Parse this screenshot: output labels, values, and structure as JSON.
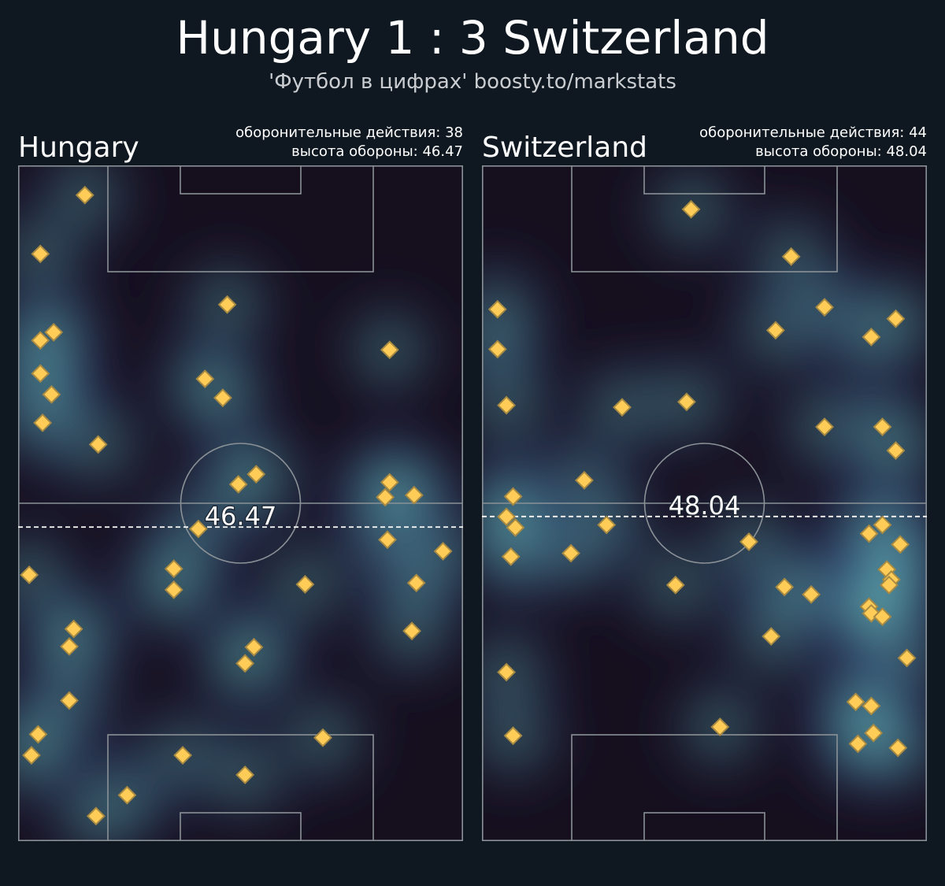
{
  "header": {
    "title": "Hungary 1 : 3 Switzerland",
    "subtitle": "'Футбол в цифрах' boosty.to/markstats"
  },
  "teams": [
    {
      "name": "Hungary",
      "actions_text": "оборонительные действия: 38",
      "height_text": "высота обороны: 46.47",
      "defense_line_label": "46.47"
    },
    {
      "name": "Switzerland",
      "actions_text": "оборонительные действия: 44",
      "height_text": "высота обороны: 48.04",
      "defense_line_label": "48.04"
    }
  ],
  "colors": {
    "background": "#0f1820",
    "pitch_base": "#160f1e",
    "marker_fill": "#ffcd57",
    "marker_stroke": "#a88a43",
    "lines": "#8a9196",
    "defense_line": "#ffffff"
  },
  "chart_data": [
    {
      "type": "scatter",
      "title": "Hungary",
      "xlim": [
        0,
        100
      ],
      "ylim": [
        0,
        100
      ],
      "defense_height": 46.47,
      "points": [
        [
          15,
          95.6
        ],
        [
          5,
          86.9
        ],
        [
          8,
          75.3
        ],
        [
          5,
          74.1
        ],
        [
          5,
          69.2
        ],
        [
          7.5,
          66.1
        ],
        [
          5.5,
          61.9
        ],
        [
          18,
          58.7
        ],
        [
          47,
          79.4
        ],
        [
          42,
          68.4
        ],
        [
          46,
          65.6
        ],
        [
          49.5,
          52.8
        ],
        [
          53.5,
          54.3
        ],
        [
          83.5,
          72.7
        ],
        [
          83.5,
          53.1
        ],
        [
          82.5,
          50.9
        ],
        [
          89,
          51.2
        ],
        [
          83,
          44.6
        ],
        [
          95.5,
          42.9
        ],
        [
          40.5,
          46.2
        ],
        [
          35,
          40.3
        ],
        [
          35,
          37.2
        ],
        [
          64.5,
          38.0
        ],
        [
          89.5,
          38.2
        ],
        [
          2.5,
          39.4
        ],
        [
          12.5,
          31.4
        ],
        [
          11.5,
          28.8
        ],
        [
          88.5,
          31.1
        ],
        [
          53,
          28.7
        ],
        [
          51,
          26.3
        ],
        [
          11.5,
          20.8
        ],
        [
          4.5,
          15.8
        ],
        [
          3,
          12.7
        ],
        [
          37,
          12.7
        ],
        [
          68.5,
          15.3
        ],
        [
          51,
          9.8
        ],
        [
          24.5,
          6.8
        ],
        [
          17.5,
          3.7
        ]
      ]
    },
    {
      "type": "scatter",
      "title": "Switzerland",
      "xlim": [
        0,
        100
      ],
      "ylim": [
        0,
        100
      ],
      "defense_height": 48.04,
      "points": [
        [
          47,
          93.5
        ],
        [
          69.5,
          86.5
        ],
        [
          3.5,
          78.7
        ],
        [
          3.5,
          72.8
        ],
        [
          66,
          75.6
        ],
        [
          77,
          79.0
        ],
        [
          87.5,
          74.6
        ],
        [
          93,
          77.3
        ],
        [
          5.5,
          64.5
        ],
        [
          31.5,
          64.2
        ],
        [
          46,
          65.0
        ],
        [
          77,
          61.3
        ],
        [
          90,
          61.3
        ],
        [
          93,
          57.8
        ],
        [
          23,
          53.4
        ],
        [
          7,
          51.0
        ],
        [
          5.5,
          48.0
        ],
        [
          7.5,
          46.4
        ],
        [
          28,
          46.8
        ],
        [
          20,
          42.6
        ],
        [
          6.5,
          42.1
        ],
        [
          60,
          44.3
        ],
        [
          87,
          45.5
        ],
        [
          90,
          46.8
        ],
        [
          94,
          43.9
        ],
        [
          91,
          40.2
        ],
        [
          92,
          38.7
        ],
        [
          91.5,
          37.9
        ],
        [
          68,
          37.6
        ],
        [
          74,
          36.5
        ],
        [
          43.5,
          37.9
        ],
        [
          87,
          34.7
        ],
        [
          87.5,
          33.7
        ],
        [
          90,
          33.2
        ],
        [
          65,
          30.3
        ],
        [
          95.5,
          27.1
        ],
        [
          5.5,
          25.0
        ],
        [
          84,
          20.6
        ],
        [
          87.5,
          20.0
        ],
        [
          88,
          16.0
        ],
        [
          84.5,
          14.4
        ],
        [
          93.5,
          13.8
        ],
        [
          53.5,
          16.9
        ],
        [
          7,
          15.6
        ]
      ]
    }
  ]
}
